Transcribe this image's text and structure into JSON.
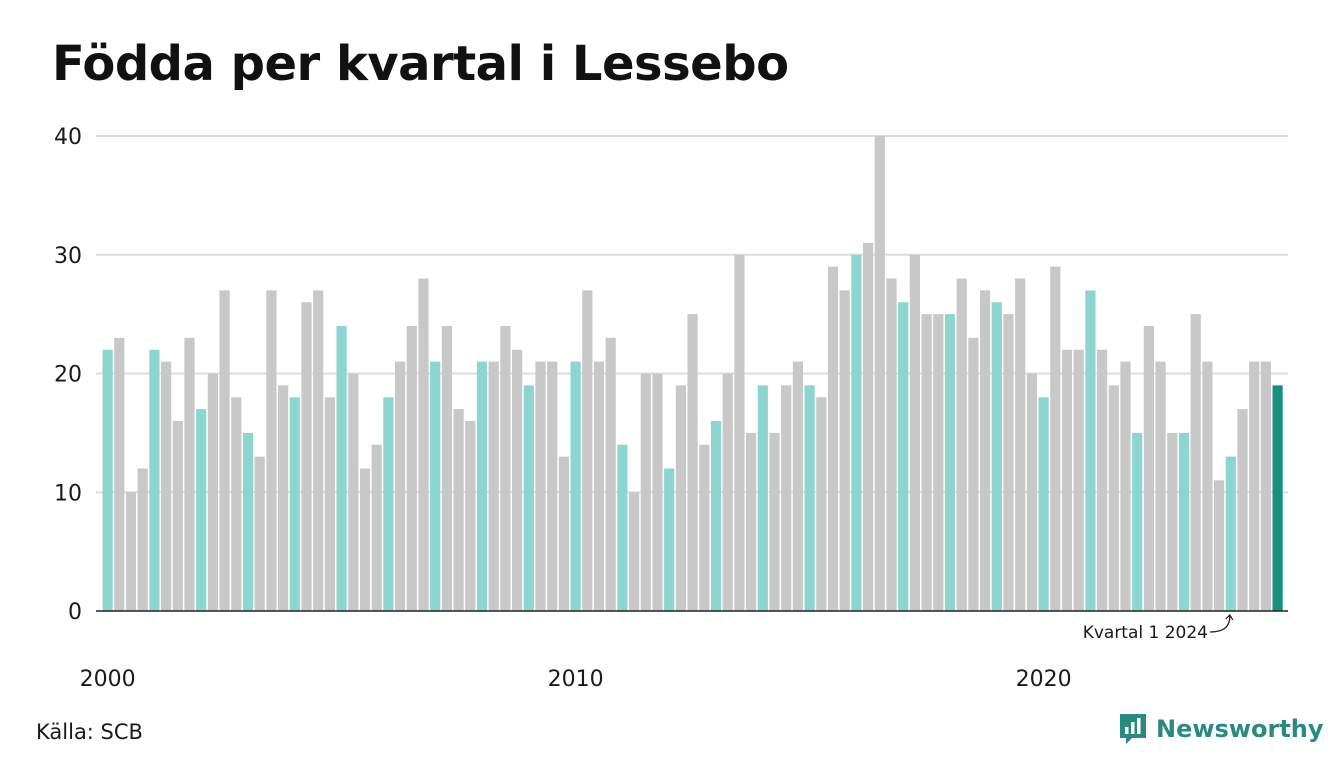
{
  "title": "Födda per kvartal i Lessebo",
  "source": "Källa: SCB",
  "brand": {
    "name": "Newsworthy",
    "icon": "newsworthy-logo-icon",
    "color": "#2a8a80"
  },
  "colors": {
    "q1": "#8dd6cf",
    "other": "#c8c8c8",
    "latest": "#17917f",
    "grid": "#dddddd",
    "axis": "#222222"
  },
  "annotation": {
    "text": "Kvartal 1 2024",
    "target_index": 96
  },
  "chart_data": {
    "type": "bar",
    "title": "Födda per kvartal i Lessebo",
    "xlabel": "",
    "ylabel": "",
    "ylim": [
      0,
      40
    ],
    "yticks": [
      0,
      10,
      20,
      30,
      40
    ],
    "xtick_labels": [
      {
        "label": "2000",
        "index": 0
      },
      {
        "label": "2010",
        "index": 40
      },
      {
        "label": "2020",
        "index": 80
      }
    ],
    "start_year": 2000,
    "start_quarter": 1,
    "grid": true,
    "values": [
      22,
      23,
      10,
      12,
      22,
      21,
      16,
      23,
      17,
      20,
      27,
      18,
      15,
      13,
      27,
      19,
      18,
      26,
      27,
      18,
      24,
      20,
      12,
      14,
      18,
      21,
      24,
      28,
      21,
      24,
      17,
      16,
      21,
      21,
      24,
      22,
      19,
      21,
      21,
      13,
      21,
      27,
      21,
      23,
      14,
      10,
      20,
      20,
      12,
      19,
      25,
      14,
      16,
      20,
      30,
      15,
      19,
      15,
      19,
      21,
      19,
      18,
      29,
      27,
      30,
      31,
      40,
      28,
      26,
      30,
      25,
      25,
      25,
      28,
      23,
      27,
      26,
      25,
      28,
      20,
      18,
      29,
      22,
      22,
      27,
      22,
      19,
      21,
      15,
      24,
      21,
      15,
      15,
      25,
      21,
      11,
      13,
      17,
      21,
      21,
      19
    ]
  }
}
